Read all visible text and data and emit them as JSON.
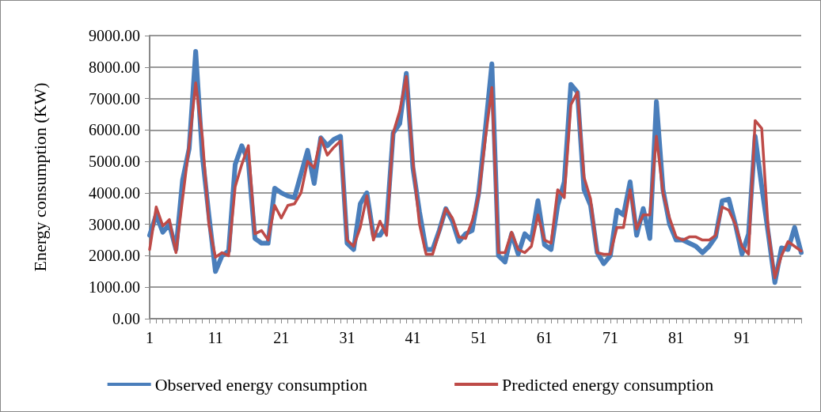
{
  "chart_data": {
    "type": "line",
    "ylabel": "Energy consumption (KW)",
    "categories": [
      "1",
      null,
      null,
      null,
      null,
      null,
      null,
      null,
      null,
      null,
      "11",
      null,
      null,
      null,
      null,
      null,
      null,
      null,
      null,
      null,
      "21",
      null,
      null,
      null,
      null,
      null,
      null,
      null,
      null,
      null,
      "31",
      null,
      null,
      null,
      null,
      null,
      null,
      null,
      null,
      null,
      "41",
      null,
      null,
      null,
      null,
      null,
      null,
      null,
      null,
      null,
      "51",
      null,
      null,
      null,
      null,
      null,
      null,
      null,
      null,
      null,
      "61",
      null,
      null,
      null,
      null,
      null,
      null,
      null,
      null,
      null,
      "71",
      null,
      null,
      null,
      null,
      null,
      null,
      null,
      null,
      null,
      "81",
      null,
      null,
      null,
      null,
      null,
      null,
      null,
      null,
      null,
      "91",
      null,
      null,
      null,
      null,
      null,
      null,
      null,
      null,
      null
    ],
    "series": [
      {
        "name": "Observed energy consumption",
        "color": "#4a7ebb",
        "values": [
          2650,
          3300,
          2750,
          3000,
          2200,
          4400,
          5400,
          8500,
          5200,
          3300,
          1500,
          2000,
          2150,
          4900,
          5500,
          5000,
          2550,
          2400,
          2400,
          4150,
          4000,
          3900,
          3850,
          4600,
          5350,
          4300,
          5750,
          5500,
          5700,
          5800,
          2400,
          2200,
          3650,
          4000,
          2650,
          2650,
          3000,
          5900,
          6200,
          7800,
          4800,
          3400,
          2200,
          2200,
          2800,
          3500,
          3100,
          2450,
          2700,
          2800,
          4000,
          6000,
          8100,
          2000,
          1800,
          2700,
          2050,
          2700,
          2500,
          3750,
          2350,
          2200,
          3600,
          4350,
          7450,
          7200,
          4100,
          3600,
          2100,
          1750,
          2000,
          3450,
          3300,
          4350,
          2650,
          3500,
          2550,
          6900,
          4100,
          3000,
          2500,
          2500,
          2400,
          2300,
          2100,
          2300,
          2600,
          3750,
          3800,
          3000,
          2050,
          2700,
          5800,
          4200,
          2700,
          1150,
          2250,
          2200,
          2900,
          2100
        ]
      },
      {
        "name": "Predicted energy consumption",
        "color": "#be4b48",
        "values": [
          2200,
          3550,
          2950,
          3150,
          2100,
          3800,
          5500,
          7500,
          5800,
          3000,
          1950,
          2100,
          2000,
          4200,
          4900,
          5500,
          2700,
          2800,
          2500,
          3600,
          3200,
          3600,
          3650,
          4000,
          5000,
          4800,
          5750,
          5200,
          5450,
          5650,
          2500,
          2300,
          2900,
          3900,
          2500,
          3100,
          2650,
          5900,
          6600,
          7700,
          5000,
          3000,
          2050,
          2050,
          2750,
          3500,
          3200,
          2600,
          2550,
          3100,
          3900,
          5700,
          7350,
          2100,
          2100,
          2750,
          2200,
          2100,
          2300,
          3300,
          2500,
          2400,
          4100,
          3850,
          6800,
          7200,
          4500,
          3800,
          2100,
          2050,
          2050,
          2900,
          2900,
          4100,
          2850,
          3300,
          3300,
          5800,
          4000,
          3200,
          2600,
          2500,
          2600,
          2600,
          2500,
          2500,
          2650,
          3550,
          3450,
          3000,
          2300,
          2050,
          6300,
          6050,
          2800,
          1300,
          2000,
          2450,
          2300,
          2150
        ]
      }
    ],
    "ylim": [
      0,
      9000
    ],
    "yticks": [
      {
        "value": 0,
        "label": "0.00"
      },
      {
        "value": 1000,
        "label": "1000.00"
      },
      {
        "value": 2000,
        "label": "2000.00"
      },
      {
        "value": 3000,
        "label": "3000.00"
      },
      {
        "value": 4000,
        "label": "4000.00"
      },
      {
        "value": 5000,
        "label": "5000.00"
      },
      {
        "value": 6000,
        "label": "6000.00"
      },
      {
        "value": 7000,
        "label": "7000.00"
      },
      {
        "value": 8000,
        "label": "8000.00"
      },
      {
        "value": 9000,
        "label": "9000.00"
      }
    ],
    "grid": "y",
    "legend": "bottom",
    "marker": "none",
    "line_style": "solid"
  }
}
